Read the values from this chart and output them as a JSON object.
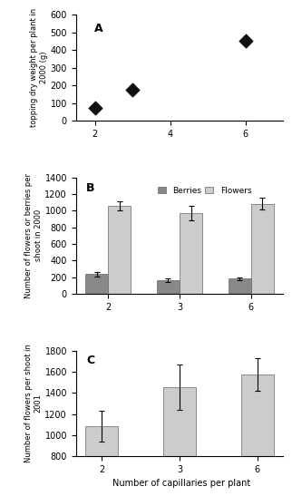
{
  "panel_A": {
    "x": [
      2,
      3,
      6
    ],
    "y": [
      70,
      175,
      455
    ],
    "ylabel": "topping dry weight per plant in\n2000 (g)",
    "ylim": [
      0,
      600
    ],
    "yticks": [
      0,
      100,
      200,
      300,
      400,
      500,
      600
    ],
    "xlim": [
      1.5,
      7
    ],
    "xticks": [
      2,
      4,
      6
    ],
    "label": "A"
  },
  "panel_B": {
    "categories": [
      "2",
      "3",
      "6"
    ],
    "berries": [
      235,
      165,
      180
    ],
    "flowers": [
      1060,
      970,
      1085
    ],
    "berries_err": [
      25,
      20,
      18
    ],
    "flowers_err": [
      55,
      90,
      75
    ],
    "ylabel": "Number of flowers or berries per\nshoot in 2000",
    "ylim": [
      0,
      1400
    ],
    "yticks": [
      0,
      200,
      400,
      600,
      800,
      1000,
      1200,
      1400
    ],
    "label": "B",
    "berries_color": "#888888",
    "flowers_color": "#cccccc"
  },
  "panel_C": {
    "categories": [
      "2",
      "3",
      "6"
    ],
    "flowers": [
      1085,
      1455,
      1575
    ],
    "flowers_err": [
      145,
      215,
      155
    ],
    "ylabel": "Number of flowers per shoot in\n2001",
    "ylim": [
      800,
      1800
    ],
    "yticks": [
      800,
      1000,
      1200,
      1400,
      1600,
      1800
    ],
    "label": "C",
    "bar_color": "#cccccc"
  },
  "xlabel": "Number of capillaries per plant",
  "marker_color": "#111111",
  "background": "#ffffff"
}
